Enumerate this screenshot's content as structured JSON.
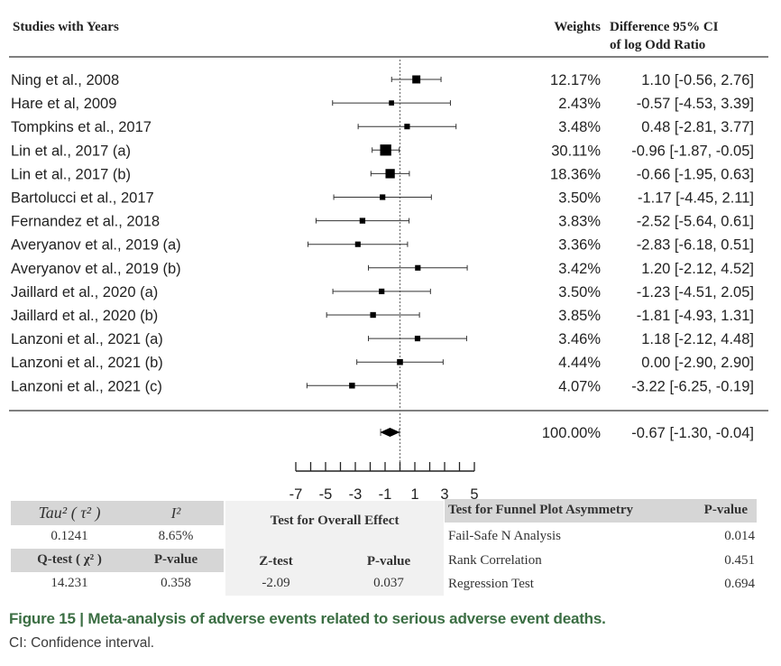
{
  "chart_data": {
    "type": "forest",
    "headers": {
      "studies": "Studies with Years",
      "weights": "Weights",
      "ci_line1": "Difference 95% CI",
      "ci_line2": "of log Odd Ratio"
    },
    "studies": [
      {
        "name": "Ning et  al., 2008",
        "weight": "12.17%",
        "weight_pct": 12.17,
        "estimate": 1.1,
        "lower": -0.56,
        "upper": 2.76,
        "ci_text": "1.10 [-0.56,  2.76]"
      },
      {
        "name": "Hare et al, 2009",
        "weight": "2.43%",
        "weight_pct": 2.43,
        "estimate": -0.57,
        "lower": -4.53,
        "upper": 3.39,
        "ci_text": "-0.57 [-4.53,  3.39]"
      },
      {
        "name": "Tompkins et al., 2017",
        "weight": "3.48%",
        "weight_pct": 3.48,
        "estimate": 0.48,
        "lower": -2.81,
        "upper": 3.77,
        "ci_text": "0.48 [-2.81,  3.77]"
      },
      {
        "name": "Lin et al., 2017 (a)",
        "weight": "30.11%",
        "weight_pct": 30.11,
        "estimate": -0.96,
        "lower": -1.87,
        "upper": -0.05,
        "ci_text": "-0.96 [-1.87, -0.05]"
      },
      {
        "name": "Lin et al., 2017 (b)",
        "weight": "18.36%",
        "weight_pct": 18.36,
        "estimate": -0.66,
        "lower": -1.95,
        "upper": 0.63,
        "ci_text": "-0.66 [-1.95,  0.63]"
      },
      {
        "name": "Bartolucci et al., 2017",
        "weight": "3.50%",
        "weight_pct": 3.5,
        "estimate": -1.17,
        "lower": -4.45,
        "upper": 2.11,
        "ci_text": "-1.17 [-4.45,  2.11]"
      },
      {
        "name": "Fernandez et al., 2018",
        "weight": "3.83%",
        "weight_pct": 3.83,
        "estimate": -2.52,
        "lower": -5.64,
        "upper": 0.61,
        "ci_text": "-2.52 [-5.64,  0.61]"
      },
      {
        "name": "Averyanov et al., 2019 (a)",
        "weight": "3.36%",
        "weight_pct": 3.36,
        "estimate": -2.83,
        "lower": -6.18,
        "upper": 0.51,
        "ci_text": "-2.83 [-6.18,  0.51]"
      },
      {
        "name": "Averyanov et al., 2019 (b)",
        "weight": "3.42%",
        "weight_pct": 3.42,
        "estimate": 1.2,
        "lower": -2.12,
        "upper": 4.52,
        "ci_text": "1.20 [-2.12,  4.52]"
      },
      {
        "name": "Jaillard et al., 2020 (a)",
        "weight": "3.50%",
        "weight_pct": 3.5,
        "estimate": -1.23,
        "lower": -4.51,
        "upper": 2.05,
        "ci_text": "-1.23 [-4.51,  2.05]"
      },
      {
        "name": "Jaillard et al., 2020 (b)",
        "weight": "3.85%",
        "weight_pct": 3.85,
        "estimate": -1.81,
        "lower": -4.93,
        "upper": 1.31,
        "ci_text": "-1.81 [-4.93,  1.31]"
      },
      {
        "name": "Lanzoni et al., 2021 (a)",
        "weight": "3.46%",
        "weight_pct": 3.46,
        "estimate": 1.18,
        "lower": -2.12,
        "upper": 4.48,
        "ci_text": "1.18 [-2.12,  4.48]"
      },
      {
        "name": "Lanzoni et al., 2021 (b)",
        "weight": "4.44%",
        "weight_pct": 4.44,
        "estimate": 0.0,
        "lower": -2.9,
        "upper": 2.9,
        "ci_text": "0.00 [-2.90,  2.90]"
      },
      {
        "name": "Lanzoni et al., 2021 (c)",
        "weight": "4.07%",
        "weight_pct": 4.07,
        "estimate": -3.22,
        "lower": -6.25,
        "upper": -0.19,
        "ci_text": "-3.22 [-6.25, -0.19]"
      }
    ],
    "summary": {
      "weight": "100.00%",
      "estimate": -0.67,
      "lower": -1.3,
      "upper": -0.04,
      "ci_text": "-0.67 [-1.30, -0.04]"
    },
    "x_ticks": [
      -7,
      -5,
      -3,
      -1,
      1,
      3,
      5
    ],
    "xlim": [
      -7,
      5
    ],
    "reference_line": 0
  },
  "stats": {
    "tau_label": "Tau² ( τ² )",
    "i2_label": "I²",
    "tau_value": "0.1241",
    "i2_value": "8.65%",
    "q_label": "Q-test ( χ² )",
    "q_p_label": "P-value",
    "q_value": "14.231",
    "q_p_value": "0.358",
    "overall_title": "Test for Overall Effect",
    "z_label": "Z-test",
    "z_p_label": "P-value",
    "z_value": "-2.09",
    "z_p_value": "0.037",
    "funnel_title": "Test for Funnel Plot Asymmetry",
    "funnel_p_label": "P-value",
    "funnel_rows": [
      {
        "label": "Fail-Safe N Analysis",
        "value": "0.014"
      },
      {
        "label": "Rank Correlation",
        "value": "0.451"
      },
      {
        "label": "Regression Test",
        "value": "0.694"
      }
    ]
  },
  "caption": {
    "title": "Figure 15  |  Meta-analysis of adverse events related to serious adverse event deaths.",
    "note": "CI: Confidence interval."
  }
}
